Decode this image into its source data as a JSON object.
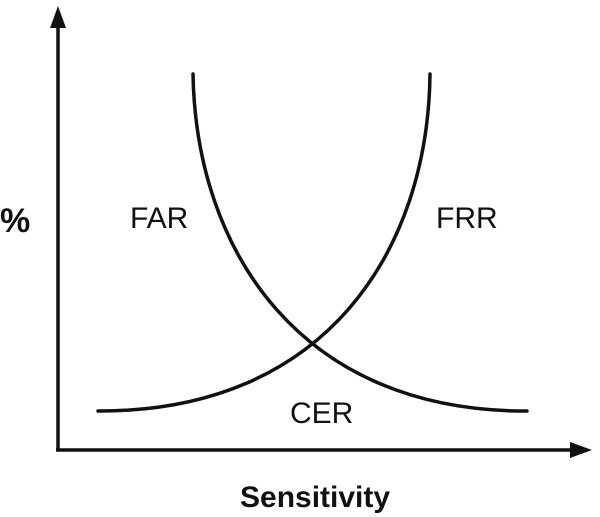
{
  "diagram": {
    "y_axis_label": "%",
    "x_axis_label": "Sensitivity",
    "curves": {
      "far_label": "FAR",
      "frr_label": "FRR",
      "crossover_label": "CER"
    },
    "stroke_color": "#111111",
    "background_color": "#ffffff"
  }
}
